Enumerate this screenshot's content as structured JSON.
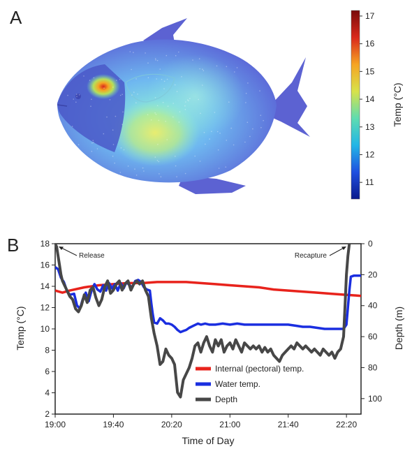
{
  "panels": {
    "a_label": "A",
    "b_label": "B"
  },
  "colorbar": {
    "label": "Temp (°C)",
    "ticks": [
      11,
      12,
      13,
      14,
      15,
      16,
      17
    ],
    "range": [
      10.4,
      17.2
    ],
    "colors": [
      "#0a1a8c",
      "#1f4fe0",
      "#22b6e6",
      "#5fdcb0",
      "#d8e24a",
      "#f6a423",
      "#d9281c",
      "#7a0b0b"
    ]
  },
  "fish_heatmap": {
    "type": "heatmap",
    "hotspot_temp": 17,
    "base_temp": 11.5
  },
  "chart_data": {
    "type": "line",
    "xlabel": "Time of Day",
    "ylabel_left": "Temp (°C)",
    "ylabel_right": "Depth (m)",
    "x_ticks": [
      "19:00",
      "19:40",
      "20:20",
      "21:00",
      "21:40",
      "22:20"
    ],
    "x_tick_minutes": [
      0,
      40,
      80,
      120,
      160,
      200
    ],
    "xlim_minutes": [
      0,
      210
    ],
    "y_left_ticks": [
      2,
      4,
      6,
      8,
      10,
      12,
      14,
      16,
      18
    ],
    "ylim_left": [
      2,
      18
    ],
    "y_right_ticks": [
      0,
      20,
      40,
      60,
      80,
      100
    ],
    "ylim_right": [
      0,
      110
    ],
    "legend_position": "bottom-center",
    "annotations": [
      {
        "text": "Release",
        "x_minutes": 1,
        "depth": 0
      },
      {
        "text": "Recapture",
        "x_minutes": 203,
        "depth": 0
      }
    ],
    "series": [
      {
        "name": "Internal (pectoral) temp.",
        "axis": "left",
        "color": "#e8231c",
        "points": [
          [
            0,
            13.6
          ],
          [
            5,
            13.4
          ],
          [
            10,
            13.6
          ],
          [
            20,
            13.9
          ],
          [
            30,
            14.1
          ],
          [
            40,
            14.2
          ],
          [
            50,
            14.3
          ],
          [
            60,
            14.3
          ],
          [
            70,
            14.4
          ],
          [
            80,
            14.4
          ],
          [
            90,
            14.4
          ],
          [
            100,
            14.3
          ],
          [
            110,
            14.2
          ],
          [
            120,
            14.1
          ],
          [
            130,
            14.0
          ],
          [
            140,
            13.9
          ],
          [
            150,
            13.7
          ],
          [
            160,
            13.6
          ],
          [
            170,
            13.5
          ],
          [
            180,
            13.4
          ],
          [
            190,
            13.3
          ],
          [
            200,
            13.2
          ],
          [
            210,
            13.1
          ]
        ]
      },
      {
        "name": "Water temp.",
        "axis": "left",
        "color": "#1a2ee0",
        "points": [
          [
            0,
            15.8
          ],
          [
            2,
            15.6
          ],
          [
            4,
            14.8
          ],
          [
            6,
            14.4
          ],
          [
            8,
            13.6
          ],
          [
            10,
            13.2
          ],
          [
            13,
            13.3
          ],
          [
            15,
            12.2
          ],
          [
            17,
            11.9
          ],
          [
            19,
            12.8
          ],
          [
            21,
            13.4
          ],
          [
            23,
            12.6
          ],
          [
            25,
            13.6
          ],
          [
            27,
            14.2
          ],
          [
            29,
            13.7
          ],
          [
            31,
            13.5
          ],
          [
            33,
            14.1
          ],
          [
            35,
            13.6
          ],
          [
            37,
            14.3
          ],
          [
            39,
            13.8
          ],
          [
            41,
            14.2
          ],
          [
            43,
            13.6
          ],
          [
            45,
            14.3
          ],
          [
            47,
            13.8
          ],
          [
            49,
            14.4
          ],
          [
            51,
            14.1
          ],
          [
            53,
            13.9
          ],
          [
            55,
            14.5
          ],
          [
            57,
            14.6
          ],
          [
            59,
            14.4
          ],
          [
            61,
            13.9
          ],
          [
            63,
            13.7
          ],
          [
            65,
            13.6
          ],
          [
            66,
            12.4
          ],
          [
            67,
            11.4
          ],
          [
            68,
            10.6
          ],
          [
            70,
            10.5
          ],
          [
            72,
            11.0
          ],
          [
            74,
            10.8
          ],
          [
            76,
            10.5
          ],
          [
            78,
            10.5
          ],
          [
            80,
            10.4
          ],
          [
            82,
            10.2
          ],
          [
            84,
            9.9
          ],
          [
            86,
            9.7
          ],
          [
            88,
            9.8
          ],
          [
            90,
            9.9
          ],
          [
            92,
            10.1
          ],
          [
            95,
            10.3
          ],
          [
            98,
            10.5
          ],
          [
            100,
            10.4
          ],
          [
            103,
            10.5
          ],
          [
            106,
            10.4
          ],
          [
            110,
            10.4
          ],
          [
            115,
            10.5
          ],
          [
            120,
            10.4
          ],
          [
            125,
            10.5
          ],
          [
            130,
            10.4
          ],
          [
            135,
            10.4
          ],
          [
            140,
            10.4
          ],
          [
            145,
            10.4
          ],
          [
            150,
            10.4
          ],
          [
            155,
            10.4
          ],
          [
            160,
            10.4
          ],
          [
            165,
            10.3
          ],
          [
            170,
            10.2
          ],
          [
            175,
            10.2
          ],
          [
            180,
            10.1
          ],
          [
            185,
            10.0
          ],
          [
            190,
            10.0
          ],
          [
            195,
            10.0
          ],
          [
            198,
            10.0
          ],
          [
            200,
            10.4
          ],
          [
            201,
            12.0
          ],
          [
            202,
            13.6
          ],
          [
            203,
            14.9
          ],
          [
            205,
            15.0
          ],
          [
            207,
            15.0
          ],
          [
            210,
            15.0
          ]
        ]
      },
      {
        "name": "Depth",
        "axis": "right",
        "color": "#474747",
        "points": [
          [
            0,
            0
          ],
          [
            1,
            2
          ],
          [
            2,
            8
          ],
          [
            3,
            14
          ],
          [
            4,
            20
          ],
          [
            5,
            24
          ],
          [
            6,
            26
          ],
          [
            8,
            30
          ],
          [
            10,
            34
          ],
          [
            12,
            36
          ],
          [
            14,
            42
          ],
          [
            16,
            44
          ],
          [
            18,
            40
          ],
          [
            20,
            33
          ],
          [
            22,
            38
          ],
          [
            24,
            30
          ],
          [
            26,
            28
          ],
          [
            28,
            35
          ],
          [
            30,
            40
          ],
          [
            32,
            36
          ],
          [
            34,
            28
          ],
          [
            36,
            24
          ],
          [
            38,
            32
          ],
          [
            40,
            30
          ],
          [
            42,
            26
          ],
          [
            44,
            24
          ],
          [
            46,
            30
          ],
          [
            48,
            26
          ],
          [
            50,
            24
          ],
          [
            52,
            30
          ],
          [
            54,
            26
          ],
          [
            56,
            24
          ],
          [
            58,
            26
          ],
          [
            60,
            24
          ],
          [
            62,
            30
          ],
          [
            64,
            34
          ],
          [
            66,
            48
          ],
          [
            68,
            58
          ],
          [
            70,
            66
          ],
          [
            72,
            78
          ],
          [
            74,
            76
          ],
          [
            76,
            68
          ],
          [
            78,
            72
          ],
          [
            80,
            74
          ],
          [
            82,
            78
          ],
          [
            84,
            96
          ],
          [
            86,
            99
          ],
          [
            88,
            88
          ],
          [
            90,
            84
          ],
          [
            92,
            80
          ],
          [
            94,
            74
          ],
          [
            96,
            66
          ],
          [
            98,
            64
          ],
          [
            100,
            70
          ],
          [
            102,
            64
          ],
          [
            104,
            60
          ],
          [
            106,
            66
          ],
          [
            108,
            70
          ],
          [
            110,
            62
          ],
          [
            112,
            66
          ],
          [
            114,
            62
          ],
          [
            116,
            70
          ],
          [
            118,
            66
          ],
          [
            120,
            64
          ],
          [
            122,
            68
          ],
          [
            124,
            62
          ],
          [
            126,
            66
          ],
          [
            128,
            70
          ],
          [
            130,
            64
          ],
          [
            132,
            66
          ],
          [
            134,
            68
          ],
          [
            136,
            66
          ],
          [
            138,
            68
          ],
          [
            140,
            66
          ],
          [
            142,
            70
          ],
          [
            144,
            67
          ],
          [
            146,
            70
          ],
          [
            148,
            68
          ],
          [
            150,
            72
          ],
          [
            152,
            74
          ],
          [
            154,
            76
          ],
          [
            156,
            72
          ],
          [
            158,
            70
          ],
          [
            160,
            68
          ],
          [
            162,
            66
          ],
          [
            164,
            68
          ],
          [
            166,
            64
          ],
          [
            168,
            66
          ],
          [
            170,
            68
          ],
          [
            172,
            66
          ],
          [
            174,
            68
          ],
          [
            176,
            70
          ],
          [
            178,
            68
          ],
          [
            180,
            70
          ],
          [
            182,
            72
          ],
          [
            184,
            68
          ],
          [
            186,
            70
          ],
          [
            188,
            72
          ],
          [
            190,
            70
          ],
          [
            192,
            74
          ],
          [
            194,
            70
          ],
          [
            196,
            68
          ],
          [
            198,
            60
          ],
          [
            199,
            40
          ],
          [
            200,
            20
          ],
          [
            201,
            8
          ],
          [
            202,
            0
          ]
        ]
      }
    ]
  }
}
